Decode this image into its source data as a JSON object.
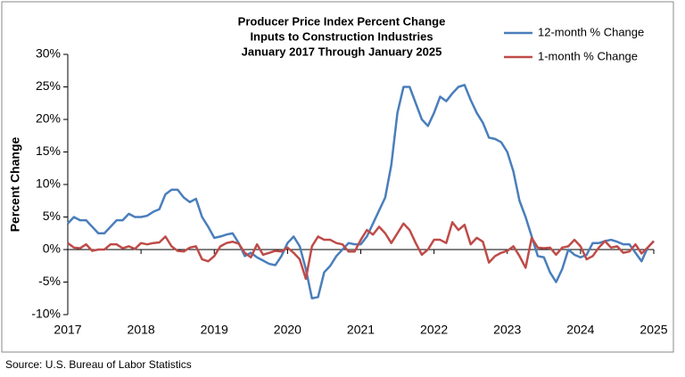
{
  "chart_data": {
    "type": "line",
    "title": "Producer Price Index Percent Change",
    "subtitle": [
      "Inputs to Construction Industries",
      "January 2017 Through January 2025"
    ],
    "y_label": "Percent Change",
    "source": "Source: U.S. Bureau of Labor Statistics",
    "categories": [
      "2017",
      null,
      null,
      null,
      null,
      null,
      null,
      null,
      null,
      null,
      null,
      null,
      "2018",
      null,
      null,
      null,
      null,
      null,
      null,
      null,
      null,
      null,
      null,
      null,
      "2019",
      null,
      null,
      null,
      null,
      null,
      null,
      null,
      null,
      null,
      null,
      null,
      "2020",
      null,
      null,
      null,
      null,
      null,
      null,
      null,
      null,
      null,
      null,
      null,
      "2021",
      null,
      null,
      null,
      null,
      null,
      null,
      null,
      null,
      null,
      null,
      null,
      "2022",
      null,
      null,
      null,
      null,
      null,
      null,
      null,
      null,
      null,
      null,
      null,
      "2023",
      null,
      null,
      null,
      null,
      null,
      null,
      null,
      null,
      null,
      null,
      null,
      "2024",
      null,
      null,
      null,
      null,
      null,
      null,
      null,
      null,
      null,
      null,
      null,
      "2025"
    ],
    "series": [
      {
        "name": "12-month % Change",
        "color": "#4a7ebb",
        "values": [
          4,
          5,
          4.5,
          4.5,
          3.5,
          2.5,
          2.5,
          3.5,
          4.5,
          4.5,
          5.5,
          5,
          5,
          5.2,
          5.8,
          6.2,
          8.5,
          9.2,
          9.2,
          8,
          7.3,
          7.8,
          5,
          3.5,
          1.8,
          2,
          2.3,
          2.5,
          1,
          -1,
          -0.5,
          -1.2,
          -1.7,
          -2.2,
          -2.4,
          -1,
          1,
          2,
          0.5,
          -3,
          -7.5,
          -7.3,
          -3.5,
          -2.5,
          -1,
          0,
          1,
          0.8,
          0.8,
          2,
          4,
          6,
          8,
          13,
          21,
          25,
          25,
          22.5,
          20,
          19,
          21,
          23.5,
          22.8,
          24,
          25,
          25.3,
          23,
          21,
          19.5,
          17.2,
          17,
          16.5,
          15,
          12,
          7.5,
          5,
          2,
          -1,
          -1.2,
          -3.5,
          -5,
          -3,
          0,
          -0.8,
          -1.2,
          -0.8,
          1,
          1,
          1.3,
          1.5,
          1.2,
          0.8,
          0.8,
          -0.5,
          -1.8,
          0.3,
          1.3
        ]
      },
      {
        "name": "1-month % Change",
        "color": "#be4b48",
        "values": [
          1,
          0.3,
          0.2,
          0.8,
          -0.2,
          0,
          0,
          0.8,
          0.8,
          0.2,
          0.5,
          0.1,
          1,
          0.8,
          1,
          1.1,
          2,
          0.5,
          -0.2,
          -0.3,
          0.3,
          0.5,
          -1.5,
          -1.8,
          -1,
          0.5,
          1,
          1.2,
          0.9,
          -0.5,
          -1.2,
          0.8,
          -0.8,
          -0.5,
          -0.2,
          -0.3,
          0.3,
          -0.5,
          -1.5,
          -4.5,
          0.5,
          2,
          1.5,
          1.5,
          1,
          0.8,
          -0.3,
          -0.3,
          1.5,
          3,
          2.3,
          3.5,
          2.5,
          1,
          2.5,
          4,
          3,
          1,
          -0.8,
          0,
          1.5,
          1.5,
          1,
          4.2,
          3,
          3.8,
          0.8,
          1.8,
          1.2,
          -2,
          -1,
          -0.5,
          -0.2,
          0.5,
          -1,
          -2.8,
          1.8,
          0.3,
          0.2,
          0.3,
          -0.8,
          0.3,
          0.5,
          1.5,
          0.5,
          -1.5,
          -1,
          0.3,
          1.3,
          0.3,
          0.5,
          -0.5,
          -0.3,
          0.8,
          -0.6,
          0.3,
          1.3
        ]
      }
    ],
    "ylim": [
      -10,
      30
    ],
    "yticks": [
      {
        "value": -10,
        "label": "-10%"
      },
      {
        "value": -5,
        "label": "-5%"
      },
      {
        "value": 0,
        "label": "0%"
      },
      {
        "value": 5,
        "label": "5%"
      },
      {
        "value": 10,
        "label": "10%"
      },
      {
        "value": 15,
        "label": "15%"
      },
      {
        "value": 20,
        "label": "20%"
      },
      {
        "value": 25,
        "label": "25%"
      },
      {
        "value": 30,
        "label": "30%"
      }
    ],
    "legend": "top-right"
  }
}
